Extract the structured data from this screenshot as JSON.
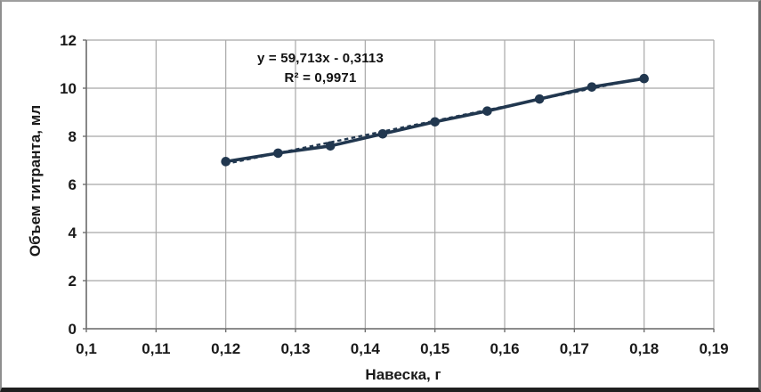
{
  "figure": {
    "background": "#ffffff",
    "frame": {
      "top_color": "#9e9e9e",
      "left_color": "#8f8f8f",
      "right_color": "#6b6b6b",
      "bottom_color": "#1f1f1f"
    }
  },
  "chart_data": {
    "type": "scatter",
    "title": "",
    "xlabel": "Навеска, г",
    "ylabel": "Объем титранта, мл",
    "xlim": [
      0.1,
      0.19
    ],
    "ylim": [
      0,
      12
    ],
    "grid": true,
    "legend_position": "none",
    "xticks": {
      "values": [
        0.1,
        0.11,
        0.12,
        0.13,
        0.14,
        0.15,
        0.16,
        0.17,
        0.18,
        0.19
      ],
      "labels": [
        "0,1",
        "0,11",
        "0,12",
        "0,13",
        "0,14",
        "0,15",
        "0,16",
        "0,17",
        "0,18",
        "0,19"
      ]
    },
    "yticks": {
      "values": [
        0,
        2,
        4,
        6,
        8,
        10,
        12
      ],
      "labels": [
        "0",
        "2",
        "4",
        "6",
        "8",
        "10",
        "12"
      ]
    },
    "series": [
      {
        "marker": "circle",
        "color": "#21374f",
        "x": [
          0.12,
          0.1275,
          0.135,
          0.1425,
          0.15,
          0.1575,
          0.165,
          0.1725,
          0.18
        ],
        "y": [
          6.95,
          7.3,
          7.6,
          8.1,
          8.6,
          9.05,
          9.55,
          10.05,
          10.4
        ]
      }
    ],
    "trendline": {
      "type": "linear",
      "slope": 59.713,
      "intercept": -0.3113,
      "equation_text": "y = 59,713x - 0,3113",
      "r2_text": "R² = 0,9971",
      "style": "dashed",
      "color": "#21374f"
    },
    "colors": {
      "grid": "#a8a8a8",
      "axis": "#6e6e6e",
      "text": "#1a1a1a"
    }
  }
}
